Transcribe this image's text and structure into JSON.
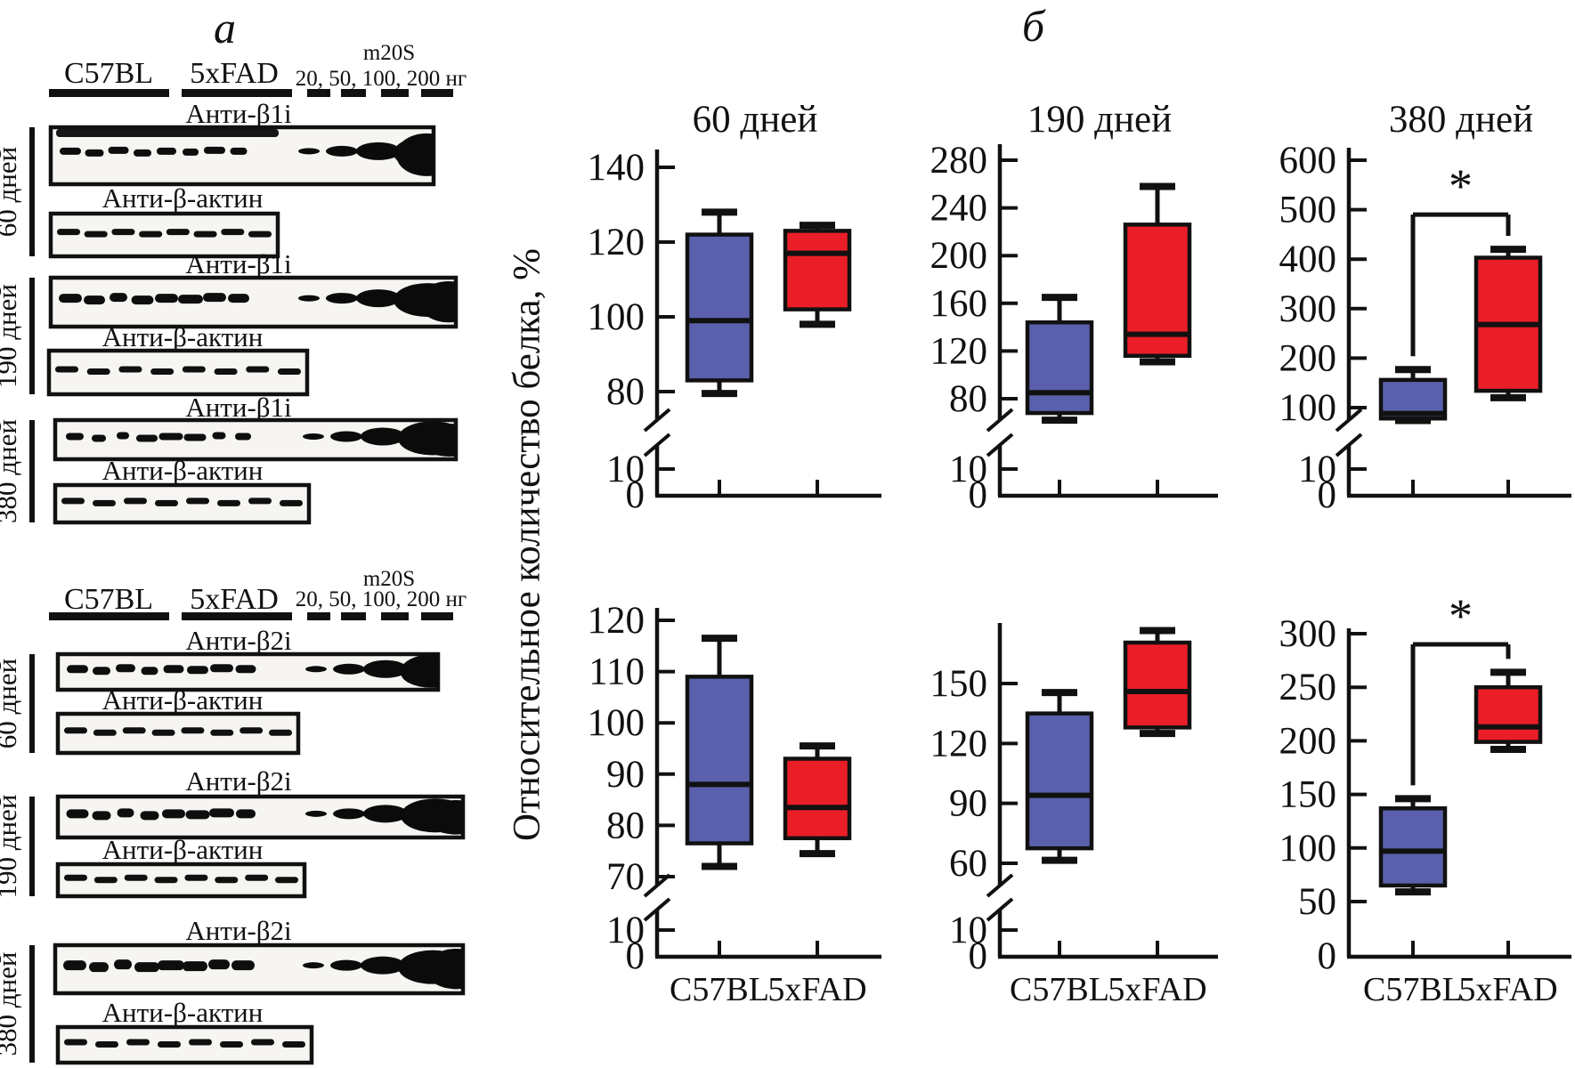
{
  "figure": {
    "panel_a_title": "a",
    "panel_b_title": "б"
  },
  "panel_a": {
    "header": {
      "group1": "C57BL",
      "group2": "5xFAD",
      "standard": "m20S",
      "amounts": "20, 50, 100, 200 нг"
    },
    "actin_label": "Анти-β-актин",
    "halves": [
      {
        "target_label": "Анти-β1i",
        "rows": [
          {
            "age": "60 дней"
          },
          {
            "age": "190 дней"
          },
          {
            "age": "380 дней"
          }
        ]
      },
      {
        "target_label": "Анти-β2i",
        "rows": [
          {
            "age": "60 дней"
          },
          {
            "age": "190 дней"
          },
          {
            "age": "380 дней"
          }
        ]
      }
    ]
  },
  "panel_b": {
    "ylabel": "Относительное количество белка, %",
    "col_titles": [
      "60 дней",
      "190 дней",
      "380 дней"
    ],
    "x_labels": [
      "C57BL",
      "5xFAD"
    ],
    "sig_star": "*",
    "colors": {
      "c57bl_fill": "#5a60ab",
      "fad_fill": "#ea1e27",
      "outline": "#111111"
    }
  },
  "chart_data": [
    {
      "type": "box",
      "id": "b1i-60",
      "row": 0,
      "col": 0,
      "title": "60 дней",
      "protein": "β1i",
      "yticks": [
        140,
        120,
        100,
        80
      ],
      "broken_axis": true,
      "lower_ticks": [
        10,
        0
      ],
      "series": [
        {
          "name": "C57BL",
          "whisker_low": 79.5,
          "q1": 83,
          "median": 99,
          "q3": 122,
          "whisker_high": 128
        },
        {
          "name": "5xFAD",
          "whisker_low": 98,
          "q1": 102,
          "median": 117,
          "q3": 123,
          "whisker_high": 124.5
        }
      ],
      "significant": false
    },
    {
      "type": "box",
      "id": "b1i-190",
      "row": 0,
      "col": 1,
      "title": "190 дней",
      "protein": "β1i",
      "yticks": [
        280,
        240,
        200,
        160,
        120,
        80
      ],
      "broken_axis": true,
      "lower_ticks": [
        10,
        0
      ],
      "series": [
        {
          "name": "C57BL",
          "whisker_low": 62,
          "q1": 68,
          "median": 85,
          "q3": 144,
          "whisker_high": 165
        },
        {
          "name": "5xFAD",
          "whisker_low": 111,
          "q1": 116,
          "median": 134,
          "q3": 226,
          "whisker_high": 258
        }
      ],
      "significant": false
    },
    {
      "type": "box",
      "id": "b1i-380",
      "row": 0,
      "col": 2,
      "title": "380 дней",
      "protein": "β1i",
      "yticks": [
        600,
        500,
        400,
        300,
        200,
        100
      ],
      "broken_axis": true,
      "lower_ticks": [
        10,
        0
      ],
      "series": [
        {
          "name": "C57BL",
          "whisker_low": 74,
          "q1": 78,
          "median": 88,
          "q3": 156,
          "whisker_high": 177
        },
        {
          "name": "5xFAD",
          "whisker_low": 120,
          "q1": 134,
          "median": 268,
          "q3": 403,
          "whisker_high": 420
        }
      ],
      "significant": true,
      "sig_level_value": 490
    },
    {
      "type": "box",
      "id": "b2i-60",
      "row": 1,
      "col": 0,
      "title": "60 дней",
      "protein": "β2i",
      "yticks": [
        120,
        110,
        100,
        90,
        80,
        70
      ],
      "broken_axis": true,
      "lower_ticks": [
        10,
        0
      ],
      "series": [
        {
          "name": "C57BL",
          "whisker_low": 72,
          "q1": 76.5,
          "median": 88,
          "q3": 109,
          "whisker_high": 116.5
        },
        {
          "name": "5xFAD",
          "whisker_low": 74.5,
          "q1": 77.5,
          "median": 83.5,
          "q3": 93,
          "whisker_high": 95.5
        }
      ],
      "significant": false
    },
    {
      "type": "box",
      "id": "b2i-190",
      "row": 1,
      "col": 1,
      "title": "190 дней",
      "protein": "β2i",
      "yticks": [
        150,
        120,
        90,
        60
      ],
      "broken_axis": true,
      "lower_ticks": [
        10,
        0
      ],
      "series": [
        {
          "name": "C57BL",
          "whisker_low": 61.5,
          "q1": 67.5,
          "median": 94,
          "q3": 135,
          "whisker_high": 145.5
        },
        {
          "name": "5xFAD",
          "whisker_low": 125,
          "q1": 128,
          "median": 146,
          "q3": 170.5,
          "whisker_high": 176.5
        }
      ],
      "significant": false
    },
    {
      "type": "box",
      "id": "b2i-380",
      "row": 1,
      "col": 2,
      "title": "380 дней",
      "protein": "β2i",
      "yticks": [
        300,
        250,
        200,
        150,
        100,
        50
      ],
      "broken_axis": false,
      "lower_ticks": [
        0
      ],
      "series": [
        {
          "name": "C57BL",
          "whisker_low": 59,
          "q1": 65,
          "median": 97,
          "q3": 137,
          "whisker_high": 146
        },
        {
          "name": "5xFAD",
          "whisker_low": 192,
          "q1": 199,
          "median": 213,
          "q3": 250,
          "whisker_high": 264
        }
      ],
      "significant": true,
      "sig_level_value": 290
    }
  ]
}
